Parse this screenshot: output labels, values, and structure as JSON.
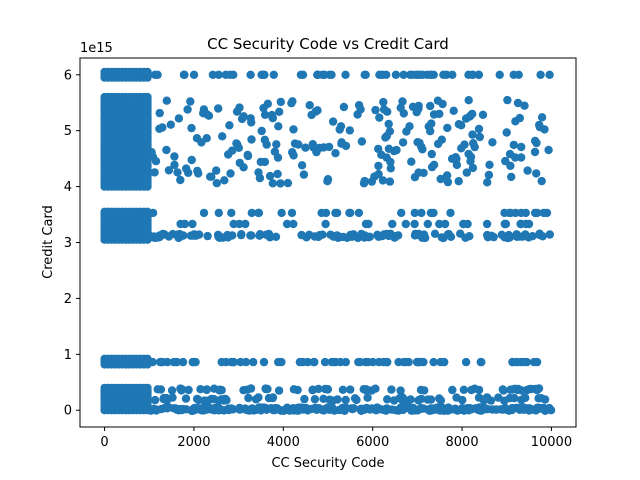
{
  "chart_data": {
    "type": "scatter",
    "title": "CC Security Code vs Credit Card",
    "xlabel": "CC Security Code",
    "ylabel": "Credit Card",
    "offset_text": "1e15",
    "xlim": [
      -550,
      10550
    ],
    "ylim": [
      -0.3,
      6.3
    ],
    "xticks": [
      0,
      2000,
      4000,
      6000,
      8000,
      10000
    ],
    "xtick_labels": [
      "0",
      "2000",
      "4000",
      "6000",
      "8000",
      "10000"
    ],
    "yticks": [
      0,
      1,
      2,
      3,
      4,
      5,
      6
    ],
    "ytick_labels": [
      "0",
      "1",
      "2",
      "3",
      "4",
      "5",
      "6"
    ],
    "grid": false,
    "color": "#1f77b4",
    "dense_blocks": [
      {
        "x": [
          0,
          1000
        ],
        "y": [
          4.0,
          5.6
        ]
      },
      {
        "x": [
          0,
          1000
        ],
        "y": [
          3.05,
          3.55
        ]
      },
      {
        "x": [
          0,
          1000
        ],
        "y": [
          0.82,
          0.92
        ]
      },
      {
        "x": [
          0,
          1000
        ],
        "y": [
          0.0,
          0.4
        ]
      },
      {
        "x": [
          0,
          1000
        ],
        "y": [
          5.95,
          6.05
        ]
      }
    ],
    "bands": [
      {
        "y": 6.0,
        "spread": 0.0,
        "n": 55
      },
      {
        "y": 4.8,
        "spread": 0.75,
        "n": 230
      },
      {
        "y": 3.53,
        "spread": 0.0,
        "n": 32
      },
      {
        "y": 3.33,
        "spread": 0.0,
        "n": 26
      },
      {
        "y": 3.12,
        "spread": 0.04,
        "n": 120
      },
      {
        "y": 0.86,
        "spread": 0.0,
        "n": 72
      },
      {
        "y": 0.37,
        "spread": 0.02,
        "n": 60
      },
      {
        "y": 0.2,
        "spread": 0.03,
        "n": 70
      },
      {
        "y": 0.02,
        "spread": 0.03,
        "n": 260
      }
    ],
    "x_range_sparse": [
      1000,
      10000
    ]
  }
}
